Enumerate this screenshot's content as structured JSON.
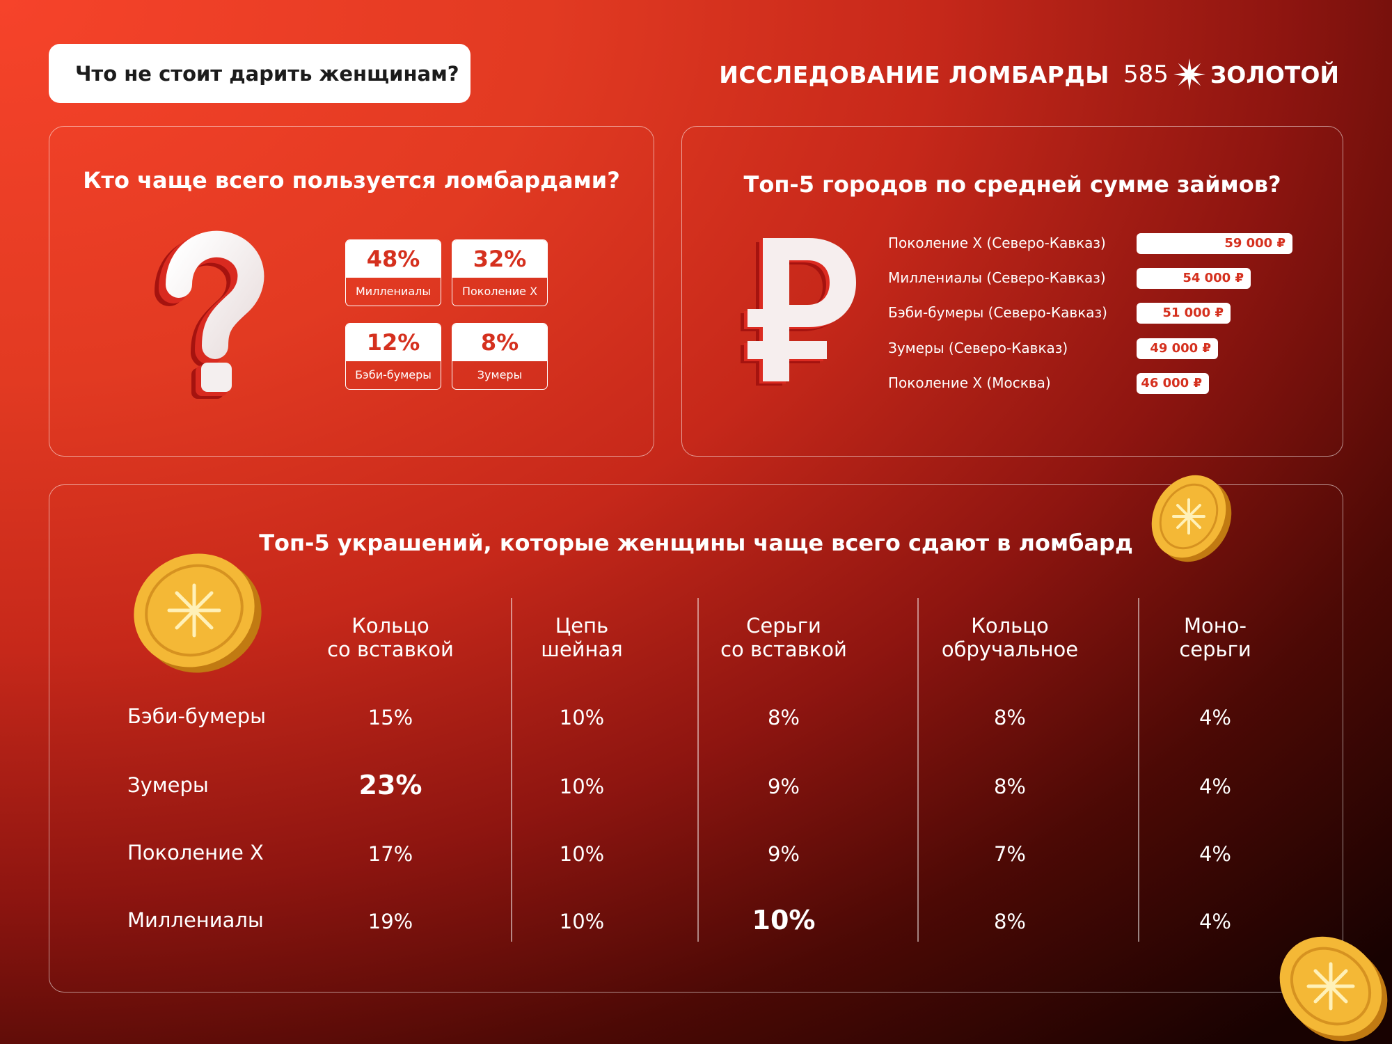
{
  "header": {
    "question": "Что не стоит дарить женщинам?",
    "study": "ИССЛЕДОВАНИЕ ЛОМБАРДЫ",
    "brand_number": "585",
    "brand_name": "ЗОЛОТОЙ"
  },
  "users_panel": {
    "title": "Кто чаще всего пользуется ломбардами?",
    "stats": [
      {
        "value": "48%",
        "label": "Миллениалы"
      },
      {
        "value": "32%",
        "label": "Поколение X"
      },
      {
        "value": "12%",
        "label": "Бэби-бумеры"
      },
      {
        "value": "8%",
        "label": "Зумеры"
      }
    ]
  },
  "cities_panel": {
    "title": "Топ-5 городов по средней сумме займов?",
    "items": [
      {
        "label": "Поколение X (Северо-Кавказ)",
        "value": "59 000 ₽",
        "amount": 59000
      },
      {
        "label": "Миллениалы (Северо-Кавказ)",
        "value": "54 000 ₽",
        "amount": 54000
      },
      {
        "label": "Бэби-бумеры (Северо-Кавказ)",
        "value": "51 000 ₽",
        "amount": 51000
      },
      {
        "label": "Зумеры (Северо-Кавказ)",
        "value": "49 000 ₽",
        "amount": 49000
      },
      {
        "label": "Поколение X (Москва)",
        "value": "46 000 ₽",
        "amount": 46000
      }
    ]
  },
  "jewelry_panel": {
    "title": "Топ-5 украшений, которые женщины чаще всего сдают в ломбард",
    "columns": [
      {
        "line1": "Кольцо",
        "line2": "со вставкой"
      },
      {
        "line1": "Цепь",
        "line2": "шейная"
      },
      {
        "line1": "Серьги",
        "line2": "со вставкой"
      },
      {
        "line1": "Кольцо",
        "line2": "обручальное"
      },
      {
        "line1": "Моно-",
        "line2": "серьги"
      }
    ],
    "rows": [
      {
        "label": "Бэби-бумеры",
        "values": [
          "15%",
          "10%",
          "8%",
          "8%",
          "4%"
        ]
      },
      {
        "label": "Зумеры",
        "values": [
          "23%",
          "10%",
          "9%",
          "8%",
          "4%"
        ]
      },
      {
        "label": "Поколение X",
        "values": [
          "17%",
          "10%",
          "9%",
          "7%",
          "4%"
        ]
      },
      {
        "label": "Миллениалы",
        "values": [
          "19%",
          "10%",
          "10%",
          "8%",
          "4%"
        ]
      }
    ],
    "highlights": [
      [
        1,
        0
      ],
      [
        3,
        2
      ]
    ]
  },
  "icons": {
    "question_art": "question-mark-3d-icon",
    "ruble_art": "ruble-sign-3d-icon",
    "coin_art": "gold-coin-icon",
    "brand_mark": "sparkle-star-icon"
  },
  "colors": {
    "accent_red": "#d5301e",
    "white": "#ffffff",
    "gold": "#f2b534"
  }
}
